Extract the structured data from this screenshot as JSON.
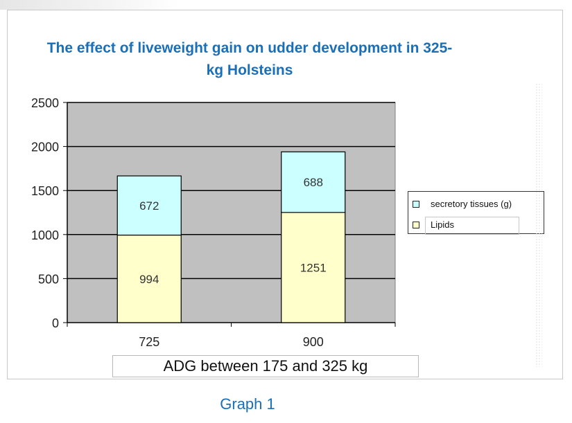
{
  "chart_data": {
    "type": "bar",
    "stacked": true,
    "title": "The effect of liveweight gain on udder development in 325-kg Holsteins",
    "title_lines": [
      "The effect of liveweight gain on udder development in 325-",
      "kg Holsteins"
    ],
    "xlabel": "ADG between 175 and 325 kg",
    "ylabel": "",
    "categories": [
      "725",
      "900"
    ],
    "ylim": [
      0,
      2500
    ],
    "yticks": [
      0,
      500,
      1000,
      1500,
      2000,
      2500
    ],
    "grid": true,
    "legend_position": "right",
    "series": [
      {
        "name": "Lipids",
        "values": [
          994,
          1251
        ],
        "color": "#ffffcc"
      },
      {
        "name": "secretory tissues (g)",
        "values": [
          672,
          688
        ],
        "color": "#ccffff"
      }
    ],
    "data_labels": [
      [
        "994",
        "1251"
      ],
      [
        "672",
        "688"
      ]
    ],
    "plot_background": "#c0c0c0"
  },
  "caption": "Graph 1",
  "colors": {
    "title": "#1a6fb7",
    "caption": "#1a6fb7"
  }
}
